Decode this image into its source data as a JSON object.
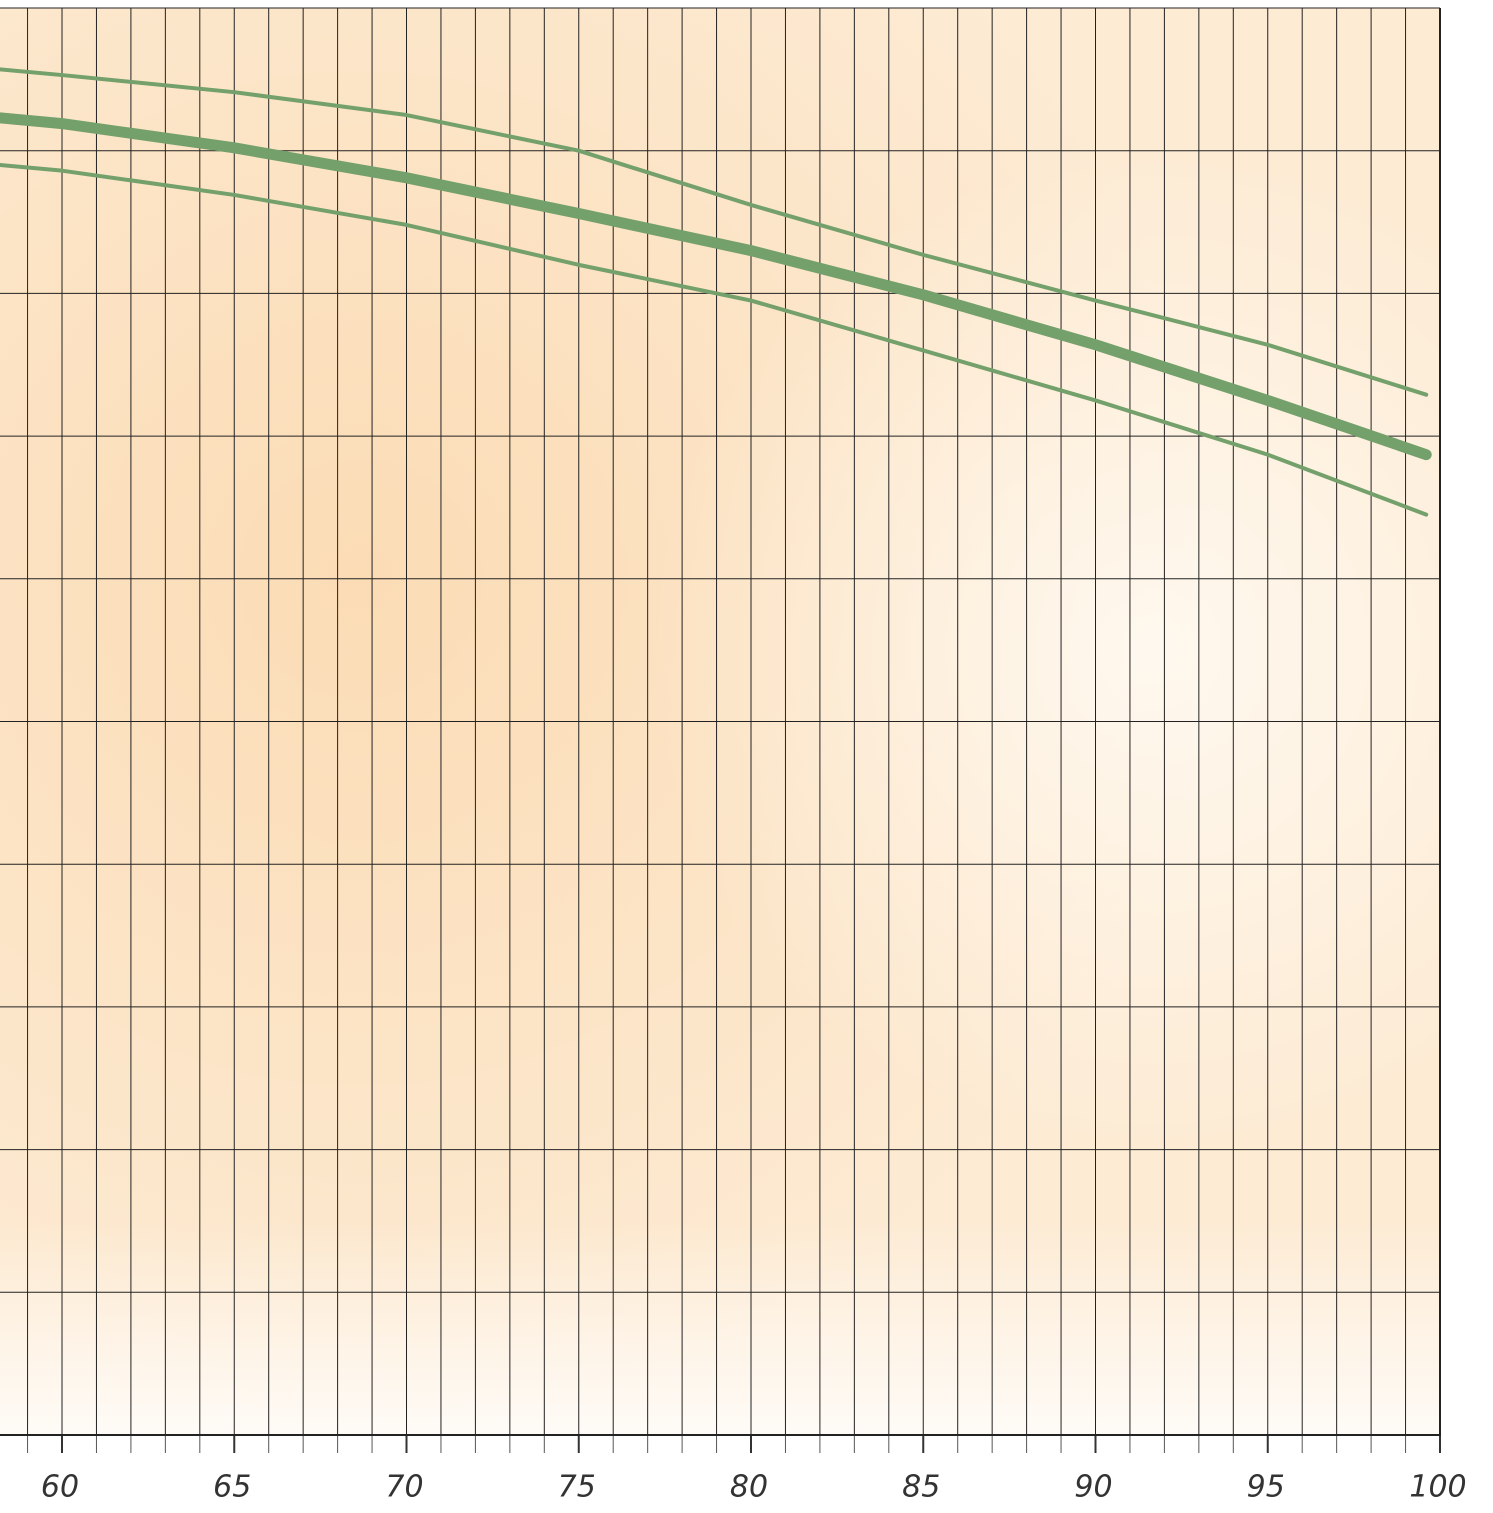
{
  "chart_data": {
    "type": "line",
    "x": [
      58.2,
      60,
      65,
      70,
      75,
      80,
      85,
      90,
      95,
      99.6
    ],
    "series": [
      {
        "color": "#74a06b",
        "width": 4,
        "values": [
          9.57,
          9.53,
          9.41,
          9.25,
          9.0,
          8.62,
          8.27,
          7.95,
          7.64,
          7.29
        ]
      },
      {
        "color": "#74a06b",
        "width": 11,
        "values": [
          9.23,
          9.19,
          9.02,
          8.81,
          8.56,
          8.3,
          7.99,
          7.64,
          7.25,
          6.87
        ]
      },
      {
        "color": "#74a06b",
        "width": 4,
        "values": [
          8.9,
          8.86,
          8.69,
          8.48,
          8.2,
          7.95,
          7.6,
          7.25,
          6.87,
          6.45
        ]
      }
    ],
    "xlim": [
      58.2,
      100
    ],
    "xticks": [
      60,
      65,
      70,
      75,
      80,
      85,
      90,
      95,
      100
    ],
    "minor_xticks": [
      59,
      60,
      61,
      62,
      63,
      64,
      65,
      66,
      67,
      68,
      69,
      70,
      71,
      72,
      73,
      74,
      75,
      76,
      77,
      78,
      79,
      80,
      81,
      82,
      83,
      84,
      85,
      86,
      87,
      88,
      89,
      90,
      91,
      92,
      93,
      94,
      95,
      96,
      97,
      98,
      99,
      100
    ],
    "ylim": [
      0,
      10
    ],
    "yticks": [
      0,
      1,
      2,
      3,
      4,
      5,
      6,
      7,
      8,
      9,
      10
    ],
    "grid": true
  }
}
